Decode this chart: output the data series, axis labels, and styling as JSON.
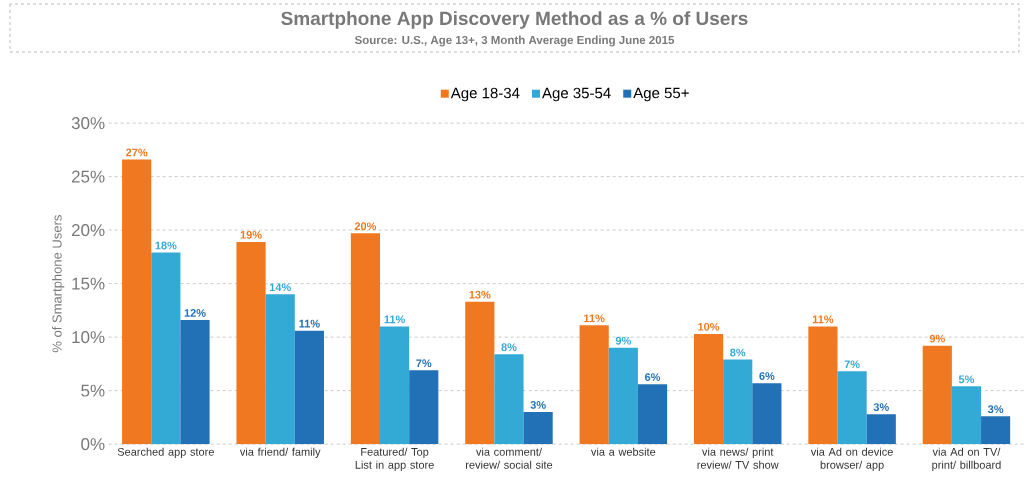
{
  "chart_data": {
    "type": "bar",
    "title": "Smartphone App Discovery Method as a % of Users",
    "subtitle": "Source: U.S., Age 13+, 3 Month Average Ending June 2015",
    "ylabel": "% of Smartphone Users",
    "categories": [
      "Searched app store",
      "via friend/ family",
      "Featured/ Top List in app store",
      "via comment/ review/ social site",
      "via a website",
      "via news/ print review/ TV show",
      "via Ad on device browser/ app",
      "via Ad on TV/ print/ billboard"
    ],
    "series": [
      {
        "name": "Age 18-34",
        "color": "#f07820",
        "values": [
          26.6,
          18.9,
          19.7,
          13.3,
          11.1,
          10.3,
          11.0,
          9.2
        ],
        "value_labels": [
          "27%",
          "19%",
          "20%",
          "13%",
          "11%",
          "10%",
          "11%",
          "9%"
        ]
      },
      {
        "name": "Age 35-54",
        "color": "#33a9d6",
        "values": [
          17.9,
          14.0,
          11.0,
          8.4,
          9.0,
          7.9,
          6.8,
          5.4
        ],
        "value_labels": [
          "18%",
          "14%",
          "11%",
          "8%",
          "9%",
          "8%",
          "7%",
          "5%"
        ]
      },
      {
        "name": "Age 55+",
        "color": "#2271b6",
        "values": [
          11.6,
          10.6,
          6.9,
          3.0,
          5.6,
          5.7,
          2.8,
          2.6
        ],
        "value_labels": [
          "12%",
          "11%",
          "7%",
          "3%",
          "6%",
          "6%",
          "3%",
          "3%"
        ]
      }
    ],
    "ylim": [
      0,
      30
    ],
    "yticks": [
      {
        "value": 0,
        "label": "0%"
      },
      {
        "value": 5,
        "label": "5%"
      },
      {
        "value": 10,
        "label": "10%"
      },
      {
        "value": 15,
        "label": "15%"
      },
      {
        "value": 20,
        "label": "20%"
      },
      {
        "value": 25,
        "label": "25%"
      },
      {
        "value": 30,
        "label": "30%"
      }
    ],
    "grid": "y",
    "legend": "top"
  }
}
